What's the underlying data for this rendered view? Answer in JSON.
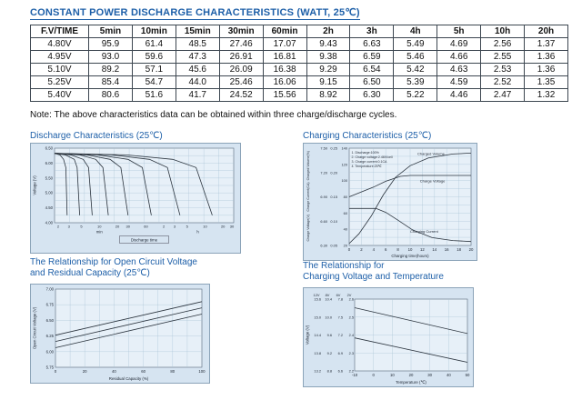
{
  "title": "CONSTANT POWER DISCHARGE CHARACTERISTICS (WATT, 25℃)",
  "note": "Note: The above characteristics data can be obtained within three charge/discharge cycles.",
  "colors": {
    "accent": "#1d5fa8",
    "panel_bg": "#d6e4f1",
    "plot_bg": "#e7f0f8",
    "grid": "#a9c3d6",
    "line": "#2a333d"
  },
  "table": {
    "headers": [
      "F.V/TIME",
      "5min",
      "10min",
      "15min",
      "30min",
      "60min",
      "2h",
      "3h",
      "4h",
      "5h",
      "10h",
      "20h"
    ],
    "rows": [
      [
        "4.80V",
        "95.9",
        "61.4",
        "48.5",
        "27.46",
        "17.07",
        "9.43",
        "6.63",
        "5.49",
        "4.69",
        "2.56",
        "1.37"
      ],
      [
        "4.95V",
        "93.0",
        "59.6",
        "47.3",
        "26.91",
        "16.81",
        "9.38",
        "6.59",
        "5.46",
        "4.66",
        "2.55",
        "1.36"
      ],
      [
        "5.10V",
        "89.2",
        "57.1",
        "45.6",
        "26.09",
        "16.38",
        "9.29",
        "6.54",
        "5.42",
        "4.63",
        "2.53",
        "1.36"
      ],
      [
        "5.25V",
        "85.4",
        "54.7",
        "44.0",
        "25.46",
        "16.06",
        "9.15",
        "6.50",
        "5.39",
        "4.59",
        "2.52",
        "1.35"
      ],
      [
        "5.40V",
        "80.6",
        "51.6",
        "41.7",
        "24.52",
        "15.56",
        "8.92",
        "6.30",
        "5.22",
        "4.46",
        "2.47",
        "1.32"
      ]
    ]
  },
  "chart_data": [
    {
      "id": "discharge",
      "type": "line",
      "title_lines": [
        "Discharge Characteristics (25℃)"
      ],
      "ylabel": "Voltage (V)",
      "xlabel_boxed": "Discharge time",
      "ylim": [
        4.0,
        6.5
      ],
      "yticks": [
        "6.50",
        "6.00",
        "5.50",
        "5.00",
        "4.50",
        "4.00"
      ],
      "xticks_pos": [
        {
          "p": 0.02,
          "t": "2"
        },
        {
          "p": 0.08,
          "t": "3"
        },
        {
          "p": 0.15,
          "t": "5"
        },
        {
          "p": 0.25,
          "t": "10"
        },
        {
          "p": 0.35,
          "t": "20"
        },
        {
          "p": 0.41,
          "t": "30"
        },
        {
          "p": 0.51,
          "t": "60"
        },
        {
          "p": 0.61,
          "t": "2"
        },
        {
          "p": 0.67,
          "t": "3"
        },
        {
          "p": 0.74,
          "t": "5"
        },
        {
          "p": 0.84,
          "t": "10"
        },
        {
          "p": 0.94,
          "t": "20"
        },
        {
          "p": 0.99,
          "t": "30"
        }
      ],
      "x_units": [
        {
          "p": 0.25,
          "t": "min"
        },
        {
          "p": 0.8,
          "t": "h"
        }
      ],
      "grid": [
        12,
        10
      ],
      "series": [
        {
          "points": [
            [
              0,
              0.93
            ],
            [
              0.03,
              0.91
            ],
            [
              0.05,
              0.85
            ],
            [
              0.063,
              0.74
            ],
            [
              0.07,
              0.1
            ]
          ]
        },
        {
          "points": [
            [
              0,
              0.93
            ],
            [
              0.06,
              0.91
            ],
            [
              0.11,
              0.85
            ],
            [
              0.126,
              0.74
            ],
            [
              0.14,
              0.1
            ]
          ]
        },
        {
          "points": [
            [
              0,
              0.93
            ],
            [
              0.09,
              0.91
            ],
            [
              0.16,
              0.85
            ],
            [
              0.19,
              0.74
            ],
            [
              0.21,
              0.1
            ]
          ]
        },
        {
          "points": [
            [
              0,
              0.93
            ],
            [
              0.14,
              0.91
            ],
            [
              0.23,
              0.85
            ],
            [
              0.27,
              0.74
            ],
            [
              0.3,
              0.1
            ]
          ]
        },
        {
          "points": [
            [
              0,
              0.93
            ],
            [
              0.18,
              0.91
            ],
            [
              0.31,
              0.85
            ],
            [
              0.37,
              0.74
            ],
            [
              0.41,
              0.1
            ]
          ]
        },
        {
          "points": [
            [
              0,
              0.93
            ],
            [
              0.24,
              0.91
            ],
            [
              0.41,
              0.85
            ],
            [
              0.49,
              0.74
            ],
            [
              0.54,
              0.1
            ]
          ]
        },
        {
          "points": [
            [
              0,
              0.93
            ],
            [
              0.32,
              0.91
            ],
            [
              0.53,
              0.85
            ],
            [
              0.63,
              0.74
            ],
            [
              0.7,
              0.1
            ]
          ]
        },
        {
          "points": [
            [
              0,
              0.93
            ],
            [
              0.4,
              0.91
            ],
            [
              0.66,
              0.85
            ],
            [
              0.79,
              0.74
            ],
            [
              0.88,
              0.1
            ]
          ]
        }
      ]
    },
    {
      "id": "charging",
      "type": "line",
      "title_lines": [
        "Charging Characteristics (25℃)"
      ],
      "xlabel": "Charging time(hours)",
      "xticks": [
        "0",
        "2",
        "4",
        "6",
        "8",
        "10",
        "12",
        "14",
        "16",
        "18",
        "20"
      ],
      "grid": [
        10,
        12
      ],
      "legend": [
        "1. Discharge:100%",
        "2. Charge voltage:2.46V/cell",
        "3. Charge current:0.1CA",
        "4. Temperature:25℃"
      ],
      "left_axes": [
        {
          "label": "Charged Volume(%)",
          "ticks": [
            "140",
            "120",
            "100",
            "80",
            "60",
            "40",
            "20"
          ]
        },
        {
          "label": "Charge Current(CA)",
          "ticks": [
            "0.25",
            "0.20",
            "0.15",
            "0.10",
            "0.05"
          ]
        },
        {
          "label": "Charge Voltage(V)",
          "ticks": [
            "7.50",
            "7.20",
            "6.90",
            "6.60",
            "6.30"
          ]
        }
      ],
      "annotations": [
        {
          "text": "Charged Volume",
          "x": 0.56,
          "y": 0.93
        },
        {
          "text": "Charge Voltage",
          "x": 0.58,
          "y": 0.65
        },
        {
          "text": "Charging Current",
          "x": 0.5,
          "y": 0.13
        }
      ],
      "series": [
        {
          "name": "charged-volume",
          "points": [
            [
              0,
              0.02
            ],
            [
              0.08,
              0.12
            ],
            [
              0.18,
              0.3
            ],
            [
              0.28,
              0.52
            ],
            [
              0.38,
              0.7
            ],
            [
              0.5,
              0.82
            ],
            [
              0.65,
              0.9
            ],
            [
              0.85,
              0.94
            ],
            [
              1,
              0.95
            ]
          ]
        },
        {
          "name": "charge-voltage",
          "points": [
            [
              0,
              0.5
            ],
            [
              0.1,
              0.55
            ],
            [
              0.2,
              0.6
            ],
            [
              0.3,
              0.66
            ],
            [
              0.42,
              0.71
            ],
            [
              0.5,
              0.72
            ],
            [
              1,
              0.72
            ]
          ]
        },
        {
          "name": "charging-current",
          "points": [
            [
              0,
              0.38
            ],
            [
              0.22,
              0.38
            ],
            [
              0.3,
              0.34
            ],
            [
              0.4,
              0.26
            ],
            [
              0.52,
              0.16
            ],
            [
              0.68,
              0.08
            ],
            [
              0.85,
              0.05
            ],
            [
              1,
              0.04
            ]
          ]
        }
      ]
    },
    {
      "id": "ocv",
      "type": "line",
      "title_lines": [
        "The Relationship for Open Circuit Voltage",
        "and Residual Capacity (25℃)"
      ],
      "ylabel": "Open Circuit Voltage (V)",
      "xlabel": "Residual Capacity (%)",
      "yticks": [
        "7.00",
        "6.75",
        "6.50",
        "6.25",
        "6.00",
        "5.75"
      ],
      "xticks": [
        "0",
        "20",
        "40",
        "60",
        "80",
        "100"
      ],
      "grid": [
        10,
        5
      ],
      "series": [
        {
          "points": [
            [
              0,
              0.25
            ],
            [
              1,
              0.68
            ]
          ]
        },
        {
          "points": [
            [
              0,
              0.33
            ],
            [
              1,
              0.76
            ]
          ]
        },
        {
          "points": [
            [
              0,
              0.41
            ],
            [
              1,
              0.84
            ]
          ]
        }
      ]
    },
    {
      "id": "cvt",
      "type": "line",
      "title_lines": [
        "The Relationship for",
        "Charging Voltage and Temperature"
      ],
      "ylabel": "Voltage (V)",
      "xlabel": "Temperature (℃)",
      "col_headers": [
        "12V",
        "8V",
        "6V",
        "2V"
      ],
      "tick_columns": [
        [
          "15.6",
          "15.0",
          "14.4",
          "13.8",
          "13.2"
        ],
        [
          "10.4",
          "10.0",
          "9.6",
          "9.2",
          "8.8"
        ],
        [
          "7.8",
          "7.5",
          "7.2",
          "6.9",
          "6.6"
        ],
        [
          "2.6",
          "2.5",
          "2.4",
          "2.3",
          "2.2"
        ]
      ],
      "xticks": [
        "-10",
        "0",
        "10",
        "20",
        "30",
        "40",
        "50"
      ],
      "grid": [
        6,
        4
      ],
      "series": [
        {
          "name": "cycle-use",
          "points": [
            [
              0,
              0.88
            ],
            [
              1,
              0.52
            ]
          ]
        },
        {
          "name": "float-use",
          "points": [
            [
              0,
              0.46
            ],
            [
              1,
              0.12
            ]
          ]
        }
      ]
    }
  ]
}
